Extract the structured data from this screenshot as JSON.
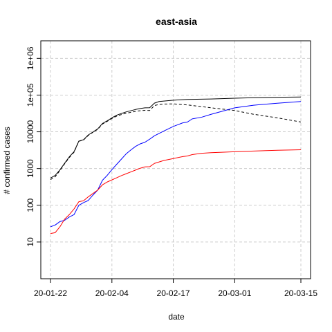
{
  "chart_data": {
    "type": "line",
    "title": "east-asia",
    "xlabel": "date",
    "ylabel": "# confirmed cases",
    "y_scale": "log",
    "ylim": [
      1,
      3000000
    ],
    "grid": true,
    "x_ticks": [
      "20-01-22",
      "20-02-04",
      "20-02-17",
      "20-03-01",
      "20-03-15"
    ],
    "y_ticks": [
      {
        "value": 10,
        "label": "10"
      },
      {
        "value": 100,
        "label": "100"
      },
      {
        "value": 1000,
        "label": "1000"
      },
      {
        "value": 10000,
        "label": "10000"
      },
      {
        "value": 100000,
        "label": "1e+05"
      },
      {
        "value": 1000000,
        "label": "1e+06"
      }
    ],
    "series": [
      {
        "color": "#000000",
        "dash": "solid",
        "points": [
          [
            "20-01-22",
            550
          ],
          [
            "20-01-23",
            650
          ],
          [
            "20-01-24",
            920
          ],
          [
            "20-01-25",
            1400
          ],
          [
            "20-01-26",
            2100
          ],
          [
            "20-01-27",
            2900
          ],
          [
            "20-01-28",
            5600
          ],
          [
            "20-01-29",
            6100
          ],
          [
            "20-01-30",
            8200
          ],
          [
            "20-01-31",
            9900
          ],
          [
            "20-02-01",
            12000
          ],
          [
            "20-02-02",
            16800
          ],
          [
            "20-02-03",
            19900
          ],
          [
            "20-02-04",
            24000
          ],
          [
            "20-02-05",
            28300
          ],
          [
            "20-02-06",
            31500
          ],
          [
            "20-02-07",
            34800
          ],
          [
            "20-02-08",
            37500
          ],
          [
            "20-02-09",
            40500
          ],
          [
            "20-02-10",
            43000
          ],
          [
            "20-02-11",
            45000
          ],
          [
            "20-02-12",
            45200
          ],
          [
            "20-02-13",
            60300
          ],
          [
            "20-02-14",
            66800
          ],
          [
            "20-02-15",
            68700
          ],
          [
            "20-02-17",
            72500
          ],
          [
            "20-02-20",
            76200
          ],
          [
            "20-02-25",
            78000
          ],
          [
            "20-03-01",
            82000
          ],
          [
            "20-03-05",
            85000
          ],
          [
            "20-03-10",
            87000
          ],
          [
            "20-03-15",
            88500
          ]
        ]
      },
      {
        "color": "#000000",
        "dash": "dashed",
        "points": [
          [
            "20-01-22",
            500
          ],
          [
            "20-01-23",
            600
          ],
          [
            "20-01-24",
            880
          ],
          [
            "20-01-25",
            1350
          ],
          [
            "20-01-26",
            2000
          ],
          [
            "20-01-27",
            2800
          ],
          [
            "20-01-28",
            5500
          ],
          [
            "20-01-29",
            6000
          ],
          [
            "20-01-30",
            8000
          ],
          [
            "20-01-31",
            9700
          ],
          [
            "20-02-01",
            11700
          ],
          [
            "20-02-02",
            16300
          ],
          [
            "20-02-03",
            19200
          ],
          [
            "20-02-04",
            23000
          ],
          [
            "20-02-05",
            26700
          ],
          [
            "20-02-06",
            29500
          ],
          [
            "20-02-07",
            32000
          ],
          [
            "20-02-08",
            34000
          ],
          [
            "20-02-09",
            36000
          ],
          [
            "20-02-10",
            37500
          ],
          [
            "20-02-11",
            38500
          ],
          [
            "20-02-12",
            38000
          ],
          [
            "20-02-13",
            52000
          ],
          [
            "20-02-14",
            55500
          ],
          [
            "20-02-15",
            57000
          ],
          [
            "20-02-17",
            57500
          ],
          [
            "20-02-20",
            54000
          ],
          [
            "20-02-25",
            45000
          ],
          [
            "20-03-01",
            38000
          ],
          [
            "20-03-05",
            30000
          ],
          [
            "20-03-10",
            24000
          ],
          [
            "20-03-15",
            18500
          ]
        ]
      },
      {
        "color": "#0000ff",
        "dash": "solid",
        "points": [
          [
            "20-01-22",
            26
          ],
          [
            "20-01-23",
            29
          ],
          [
            "20-01-24",
            36
          ],
          [
            "20-01-25",
            39
          ],
          [
            "20-01-26",
            48
          ],
          [
            "20-01-27",
            56
          ],
          [
            "20-01-28",
            100
          ],
          [
            "20-01-29",
            118
          ],
          [
            "20-01-30",
            135
          ],
          [
            "20-01-31",
            190
          ],
          [
            "20-02-01",
            260
          ],
          [
            "20-02-02",
            480
          ],
          [
            "20-02-03",
            650
          ],
          [
            "20-02-04",
            930
          ],
          [
            "20-02-05",
            1300
          ],
          [
            "20-02-06",
            1800
          ],
          [
            "20-02-07",
            2500
          ],
          [
            "20-02-08",
            3200
          ],
          [
            "20-02-09",
            4000
          ],
          [
            "20-02-10",
            4700
          ],
          [
            "20-02-11",
            5200
          ],
          [
            "20-02-12",
            6300
          ],
          [
            "20-02-13",
            7800
          ],
          [
            "20-02-15",
            10500
          ],
          [
            "20-02-17",
            14000
          ],
          [
            "20-02-19",
            17500
          ],
          [
            "20-02-20",
            18500
          ],
          [
            "20-02-21",
            22500
          ],
          [
            "20-02-23",
            25000
          ],
          [
            "20-02-25",
            30000
          ],
          [
            "20-03-01",
            45000
          ],
          [
            "20-03-05",
            53000
          ],
          [
            "20-03-10",
            60000
          ],
          [
            "20-03-15",
            67000
          ]
        ]
      },
      {
        "color": "#ff0000",
        "dash": "solid",
        "points": [
          [
            "20-01-22",
            17
          ],
          [
            "20-01-23",
            18
          ],
          [
            "20-01-24",
            26
          ],
          [
            "20-01-25",
            42
          ],
          [
            "20-01-26",
            56
          ],
          [
            "20-01-27",
            80
          ],
          [
            "20-01-28",
            125
          ],
          [
            "20-01-29",
            133
          ],
          [
            "20-01-30",
            170
          ],
          [
            "20-01-31",
            210
          ],
          [
            "20-02-01",
            260
          ],
          [
            "20-02-02",
            360
          ],
          [
            "20-02-03",
            430
          ],
          [
            "20-02-04",
            490
          ],
          [
            "20-02-05",
            560
          ],
          [
            "20-02-06",
            640
          ],
          [
            "20-02-07",
            720
          ],
          [
            "20-02-08",
            810
          ],
          [
            "20-02-09",
            910
          ],
          [
            "20-02-10",
            1020
          ],
          [
            "20-02-11",
            1110
          ],
          [
            "20-02-12",
            1120
          ],
          [
            "20-02-13",
            1380
          ],
          [
            "20-02-15",
            1660
          ],
          [
            "20-02-17",
            1870
          ],
          [
            "20-02-19",
            2120
          ],
          [
            "20-02-20",
            2200
          ],
          [
            "20-02-21",
            2400
          ],
          [
            "20-02-23",
            2600
          ],
          [
            "20-02-25",
            2700
          ],
          [
            "20-03-01",
            2870
          ],
          [
            "20-03-05",
            3000
          ],
          [
            "20-03-10",
            3150
          ],
          [
            "20-03-15",
            3250
          ]
        ]
      }
    ]
  }
}
